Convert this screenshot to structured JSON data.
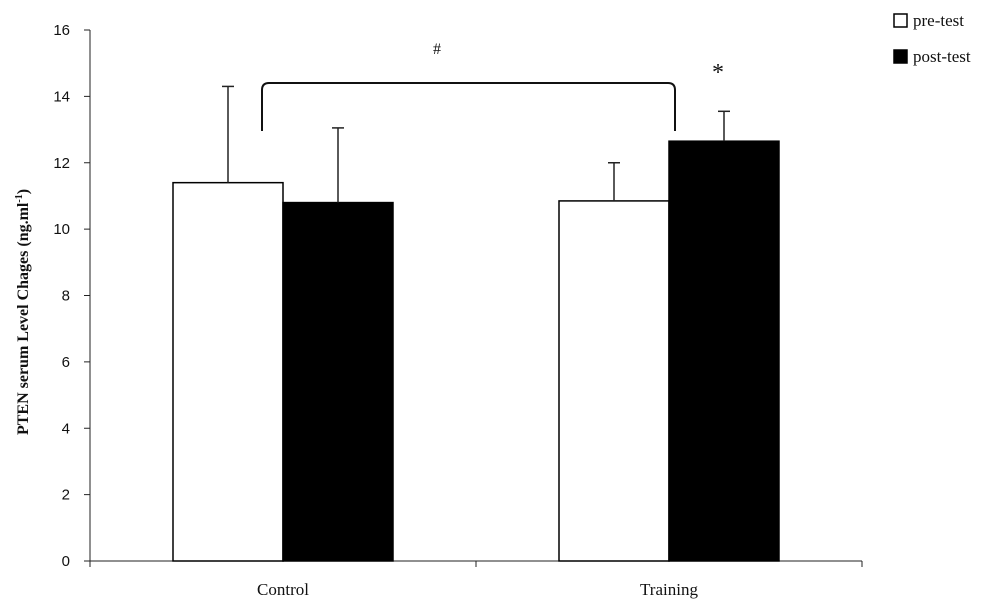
{
  "chart_data": {
    "type": "bar",
    "categories": [
      "Control",
      "Training"
    ],
    "series": [
      {
        "name": "pre-test",
        "values": [
          11.4,
          10.85
        ],
        "error": [
          2.9,
          1.15
        ],
        "fill": "#ffffff",
        "stroke": "#000000"
      },
      {
        "name": "post-test",
        "values": [
          10.8,
          12.65
        ],
        "error": [
          2.25,
          0.9
        ],
        "fill": "#000000",
        "stroke": "#000000"
      }
    ],
    "ylabel_main": "PTEN serum Level Chages (ng.ml",
    "ylabel_sup": "-1",
    "ylabel_close": ")",
    "ylim": [
      0,
      16
    ],
    "yticks": [
      0,
      2,
      4,
      6,
      8,
      10,
      12,
      14,
      16
    ],
    "legend_position": "top-right",
    "annotations": {
      "group_symbol": "#",
      "post_symbol": "*"
    }
  }
}
